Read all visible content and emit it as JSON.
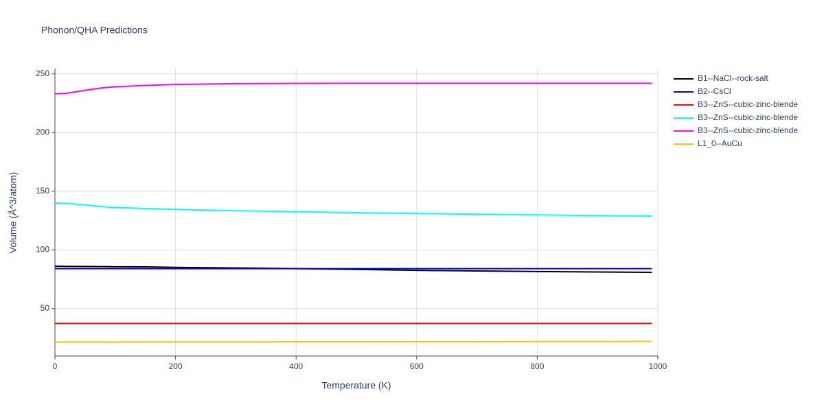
{
  "chart_data": {
    "type": "line",
    "title": "Phonon/QHA Predictions",
    "x_label": "Temperature (K)",
    "y_label": "Volume (Å^3/atom)",
    "x": [
      0,
      20,
      50,
      80,
      100,
      150,
      200,
      300,
      400,
      500,
      600,
      700,
      800,
      900,
      990
    ],
    "series": [
      {
        "name": "B1--NaCl--rock-salt",
        "color": "#000000",
        "values": [
          86,
          85.9,
          85.8,
          85.7,
          85.6,
          85.5,
          85.1,
          84.6,
          84,
          83.3,
          82.5,
          82,
          81.5,
          81.1,
          80.8
        ]
      },
      {
        "name": "B2--CsCl",
        "color": "#0000ff",
        "values": [
          84,
          84,
          84,
          84,
          84,
          84,
          84,
          84,
          84,
          84,
          84,
          84,
          84,
          84,
          84
        ]
      },
      {
        "name": "B3--ZnS--cubic-zinc-blende",
        "color": "#ff0000",
        "values": [
          37.3,
          37.3,
          37.3,
          37.3,
          37.3,
          37.3,
          37.3,
          37.3,
          37.3,
          37.3,
          37.3,
          37.3,
          37.3,
          37.3,
          37.3
        ]
      },
      {
        "name": "B3--ZnS--cubic-zinc-blende",
        "color": "#00ffff",
        "values": [
          140,
          139.6,
          138.3,
          136.8,
          136,
          135.3,
          134.5,
          133.4,
          132.5,
          131.7,
          131,
          130.4,
          129.8,
          129.2,
          128.8
        ]
      },
      {
        "name": "B3--ZnS--cubic-zinc-blende",
        "color": "#ff00ff",
        "values": [
          233,
          233.5,
          236,
          238.2,
          239,
          240.2,
          241,
          241.7,
          241.9,
          242,
          242,
          242,
          242,
          242,
          242
        ]
      },
      {
        "name": "L1_0--AuCu",
        "color": "#ffbf00",
        "values": [
          21.5,
          21.5,
          21.5,
          21.5,
          21.5,
          21.6,
          21.6,
          21.6,
          21.7,
          21.7,
          21.8,
          21.8,
          21.9,
          21.9,
          22
        ]
      }
    ],
    "xlim": [
      0,
      1000
    ],
    "xticks": [
      0,
      200,
      400,
      600,
      800,
      1000
    ],
    "ylim": [
      9.5,
      254.5
    ],
    "yticks": [
      50,
      100,
      150,
      200,
      250
    ],
    "grid": true
  }
}
